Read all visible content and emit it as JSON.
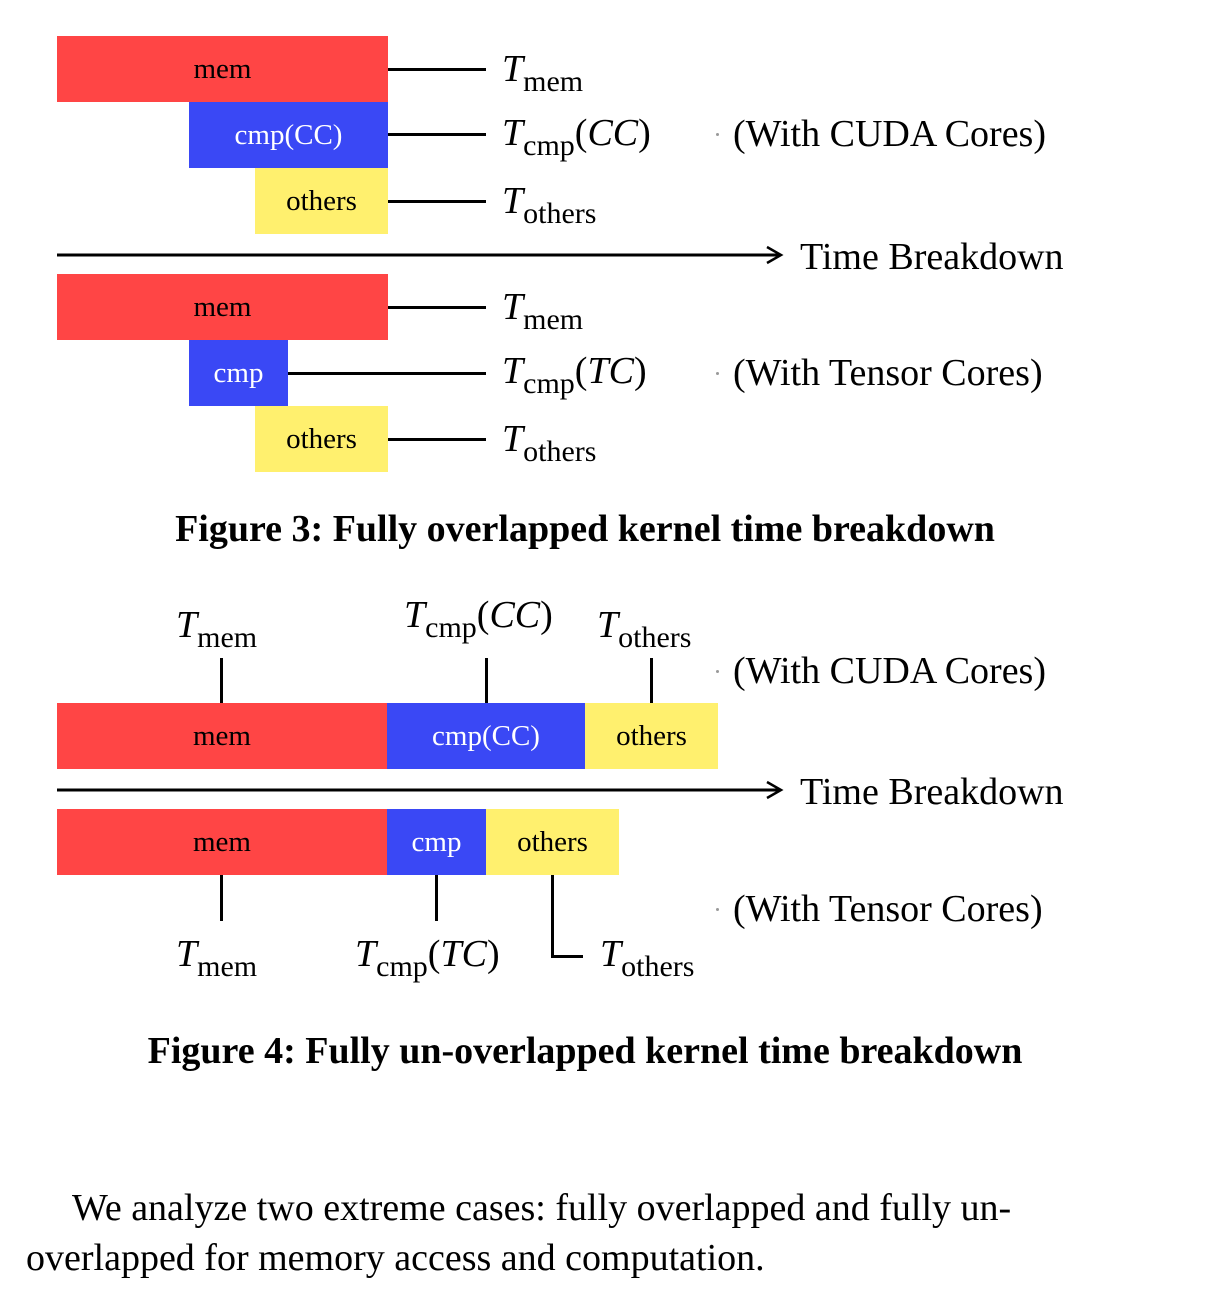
{
  "figure3": {
    "caption": "Figure 3: Fully overlapped kernel time breakdown",
    "cuda": {
      "bars": {
        "mem": "mem",
        "cmp": "cmp(CC)",
        "others": "others"
      },
      "labels": {
        "mem": {
          "T": "T",
          "sub": "mem",
          "paren": ""
        },
        "cmp": {
          "T": "T",
          "sub": "cmp",
          "paren_open": "(",
          "inner": "CC",
          "paren_close": ")"
        },
        "others": {
          "T": "T",
          "sub": "others"
        }
      },
      "note": "(With CUDA Cores)"
    },
    "axis_label": "Time Breakdown",
    "tensor": {
      "bars": {
        "mem": "mem",
        "cmp": "cmp",
        "others": "others"
      },
      "labels": {
        "mem": {
          "T": "T",
          "sub": "mem"
        },
        "cmp": {
          "T": "T",
          "sub": "cmp",
          "paren_open": "(",
          "inner": "TC",
          "paren_close": ")"
        },
        "others": {
          "T": "T",
          "sub": "others"
        }
      },
      "note": "(With Tensor Cores)"
    }
  },
  "figure4": {
    "caption": "Figure 4: Fully un-overlapped kernel time breakdown",
    "cuda": {
      "bars": {
        "mem": "mem",
        "cmp": "cmp(CC)",
        "others": "others"
      },
      "labels": {
        "mem": {
          "T": "T",
          "sub": "mem"
        },
        "cmp": {
          "T": "T",
          "sub": "cmp",
          "paren_open": "(",
          "inner": "CC",
          "paren_close": ")"
        },
        "others": {
          "T": "T",
          "sub": "others"
        }
      },
      "note": "(With CUDA Cores)"
    },
    "axis_label": "Time Breakdown",
    "tensor": {
      "bars": {
        "mem": "mem",
        "cmp": "cmp",
        "others": "others"
      },
      "labels": {
        "mem": {
          "T": "T",
          "sub": "mem"
        },
        "cmp": {
          "T": "T",
          "sub": "cmp",
          "paren_open": "(",
          "inner": "TC",
          "paren_close": ")"
        },
        "others": {
          "T": "T",
          "sub": "others"
        }
      },
      "note": "(With Tensor Cores)"
    }
  },
  "paragraph": "We analyze two extreme cases: fully overlapped and fully un-overlapped for memory access and computation.",
  "colors": {
    "mem": "#ff4545",
    "cmp": "#3a48f5",
    "others": "#fff06e"
  }
}
